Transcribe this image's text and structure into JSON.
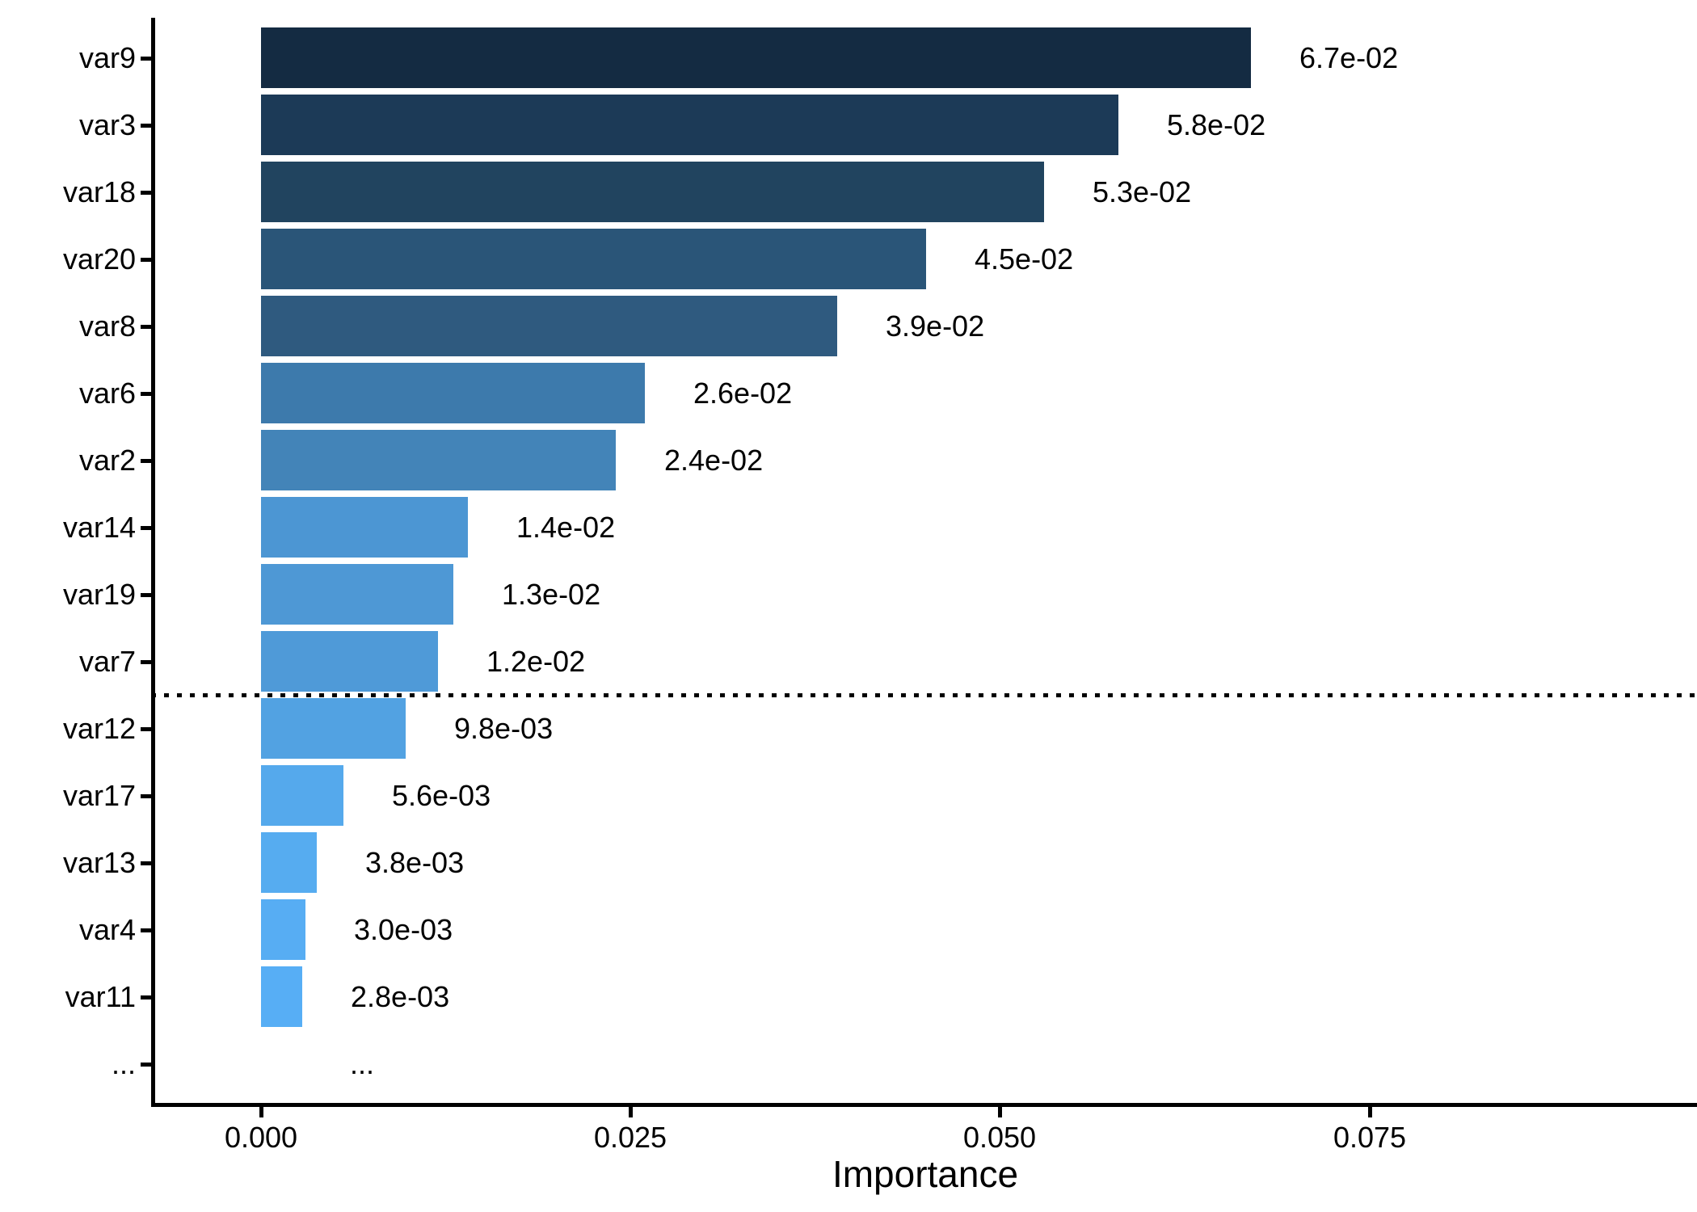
{
  "chart_data": {
    "type": "bar",
    "orientation": "horizontal",
    "title": "",
    "xlabel": "Importance",
    "ylabel": "",
    "categories": [
      "var9",
      "var3",
      "var18",
      "var20",
      "var8",
      "var6",
      "var2",
      "var14",
      "var19",
      "var7",
      "var12",
      "var17",
      "var13",
      "var4",
      "var11",
      "..."
    ],
    "values": [
      0.067,
      0.058,
      0.053,
      0.045,
      0.039,
      0.026,
      0.024,
      0.014,
      0.013,
      0.012,
      0.0098,
      0.0056,
      0.0038,
      0.003,
      0.0028,
      null
    ],
    "value_labels": [
      "6.7e-02",
      "5.8e-02",
      "5.3e-02",
      "4.5e-02",
      "3.9e-02",
      "2.6e-02",
      "2.4e-02",
      "1.4e-02",
      "1.3e-02",
      "1.2e-02",
      "9.8e-03",
      "5.6e-03",
      "3.8e-03",
      "3.0e-03",
      "2.8e-03",
      "..."
    ],
    "bar_colors": [
      "#142B42",
      "#1C3A57",
      "#21445F",
      "#2A5578",
      "#2F5A7F",
      "#3D7AAC",
      "#4384B8",
      "#4C96D3",
      "#4E98D5",
      "#4F9AD8",
      "#52A2E2",
      "#55A9EC",
      "#56ACF0",
      "#57ADF3",
      "#57AEF5"
    ],
    "x_ticks": [
      "0.000",
      "0.025",
      "0.050",
      "0.075"
    ],
    "x_tick_values": [
      0.0,
      0.025,
      0.05,
      0.075
    ],
    "xlim": [
      -0.00745,
      0.09725
    ],
    "grid": false,
    "legend": "none",
    "text_color": "#000000",
    "axis_color": "#000000",
    "background_color": "#ffffff",
    "cutoff_line": {
      "style": "dotted",
      "color": "#000000",
      "between": [
        "var7",
        "var12"
      ]
    }
  }
}
